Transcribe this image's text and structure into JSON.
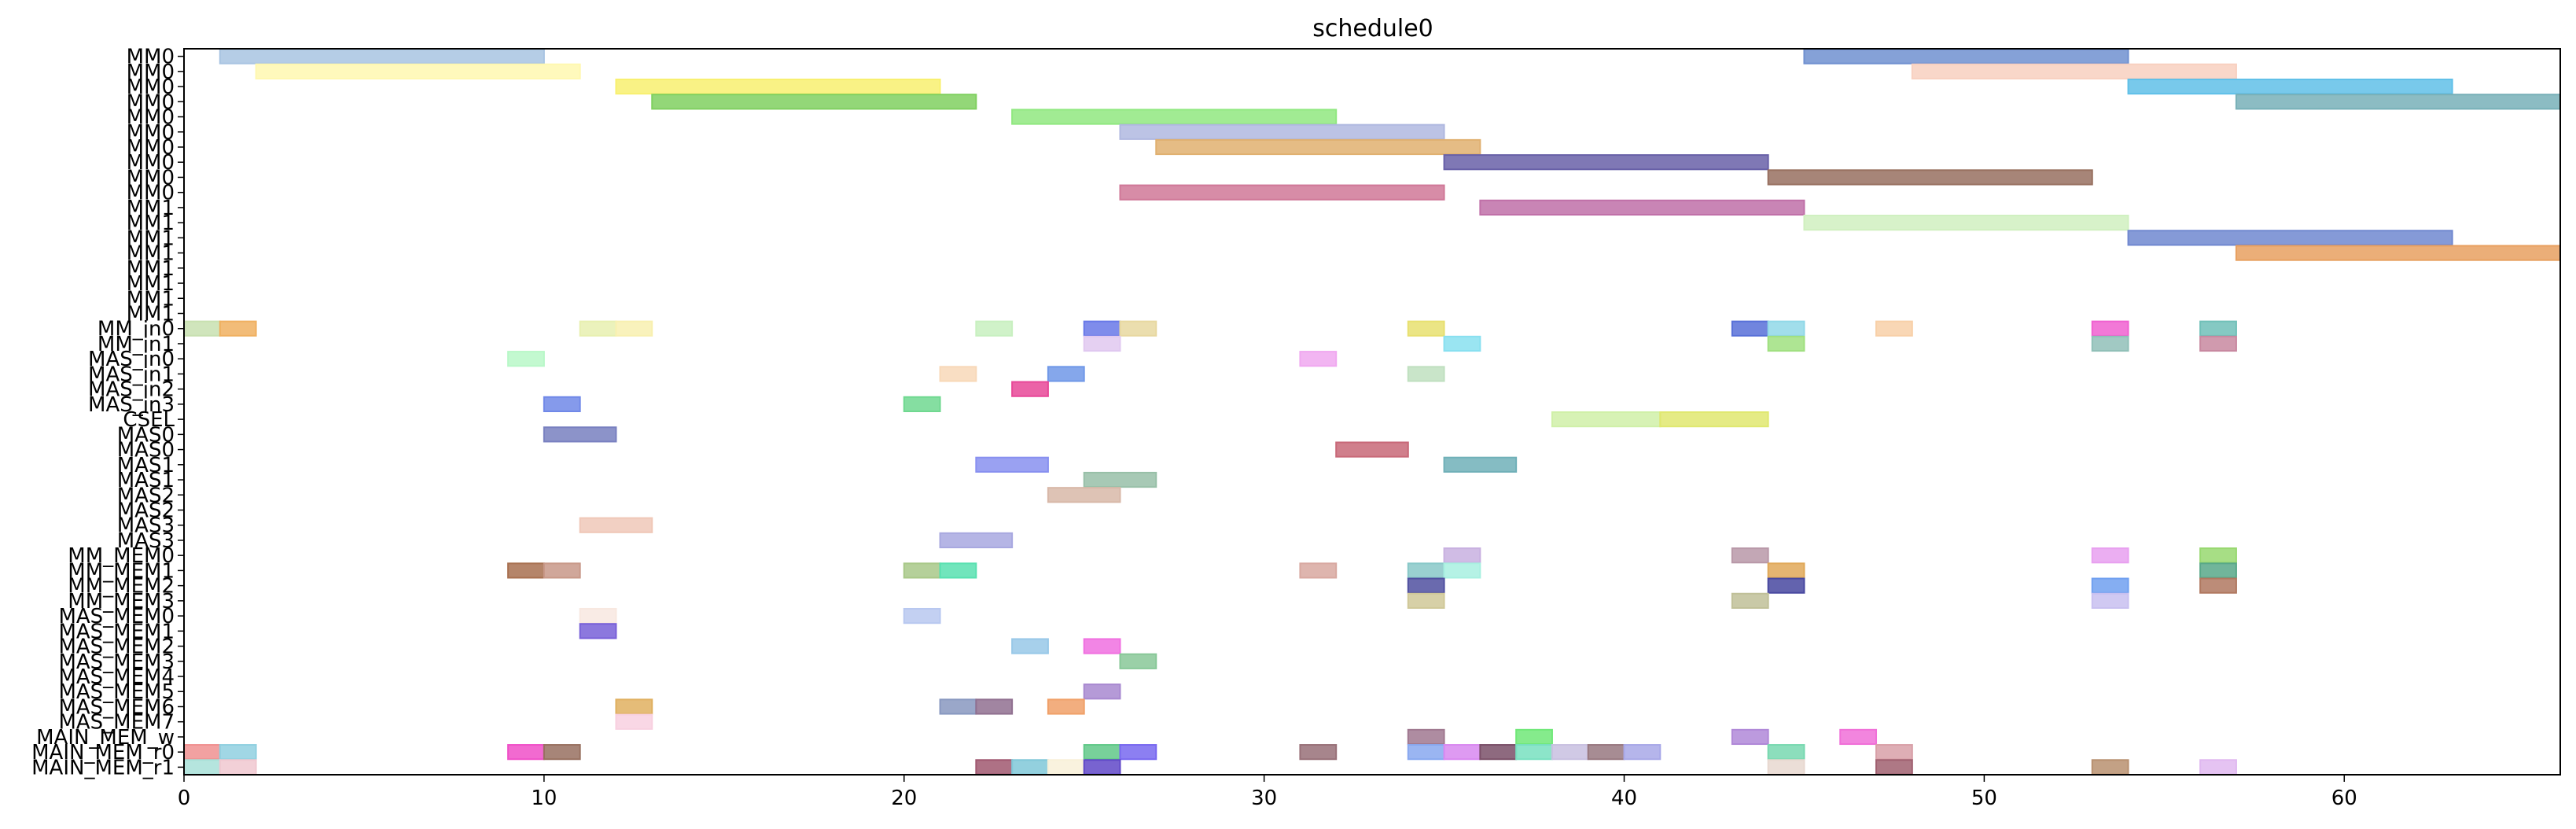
{
  "chart_data": {
    "type": "gantt",
    "title": "schedule0",
    "xlabel": "",
    "ylabel": "",
    "xlim": [
      0,
      66
    ],
    "x_ticks": [
      0,
      10,
      20,
      30,
      40,
      50,
      60
    ],
    "grid": false,
    "legend": "none",
    "rows": [
      "MM0",
      "MM0",
      "MM0",
      "MM0",
      "MM0",
      "MM0",
      "MM0",
      "MM0",
      "MM0",
      "MM0",
      "MM1",
      "MM1",
      "MM1",
      "MM1",
      "MM1",
      "MM1",
      "MM1",
      "MM1",
      "MM_in0",
      "MM_in1",
      "MAS_in0",
      "MAS_in1",
      "MAS_in2",
      "MAS_in3",
      "CSEL",
      "MAS0",
      "MAS0",
      "MAS1",
      "MAS1",
      "MAS2",
      "MAS2",
      "MAS3",
      "MAS3",
      "MM_MEM0",
      "MM_MEM1",
      "MM_MEM2",
      "MM_MEM3",
      "MAS_MEM0",
      "MAS_MEM1",
      "MAS_MEM2",
      "MAS_MEM3",
      "MAS_MEM4",
      "MAS_MEM5",
      "MAS_MEM6",
      "MAS_MEM7",
      "MAIN_MEM_w",
      "MAIN_MEM_r0",
      "MAIN_MEM_r1"
    ],
    "tasks": [
      {
        "row": 0,
        "start": 1,
        "end": 10,
        "color": "#a8c4e2"
      },
      {
        "row": 0,
        "start": 45,
        "end": 54,
        "color": "#7090d0"
      },
      {
        "row": 1,
        "start": 2,
        "end": 11,
        "color": "#fff8b0"
      },
      {
        "row": 1,
        "start": 48,
        "end": 57,
        "color": "#f8d0c0"
      },
      {
        "row": 2,
        "start": 12,
        "end": 21,
        "color": "#f8f070"
      },
      {
        "row": 2,
        "start": 54,
        "end": 63,
        "color": "#60c0e8"
      },
      {
        "row": 3,
        "start": 13,
        "end": 22,
        "color": "#80d060"
      },
      {
        "row": 3,
        "start": 57,
        "end": 66,
        "color": "#78b0b8"
      },
      {
        "row": 4,
        "start": 23,
        "end": 32,
        "color": "#90e880"
      },
      {
        "row": 5,
        "start": 26,
        "end": 35,
        "color": "#b0b8e0"
      },
      {
        "row": 6,
        "start": 27,
        "end": 36,
        "color": "#e0b070"
      },
      {
        "row": 7,
        "start": 35,
        "end": 44,
        "color": "#6860a8"
      },
      {
        "row": 8,
        "start": 44,
        "end": 53,
        "color": "#987060"
      },
      {
        "row": 9,
        "start": 26,
        "end": 35,
        "color": "#d07898"
      },
      {
        "row": 10,
        "start": 36,
        "end": 45,
        "color": "#c070a8"
      },
      {
        "row": 11,
        "start": 45,
        "end": 54,
        "color": "#d0f0c0"
      },
      {
        "row": 12,
        "start": 54,
        "end": 63,
        "color": "#7088d0"
      },
      {
        "row": 13,
        "start": 57,
        "end": 66,
        "color": "#e8a060"
      },
      {
        "row": 18,
        "start": 0,
        "end": 1,
        "color": "#c8e0b0"
      },
      {
        "row": 18,
        "start": 1,
        "end": 2,
        "color": "#f0b060"
      },
      {
        "row": 18,
        "start": 11,
        "end": 12,
        "color": "#e8f0b0"
      },
      {
        "row": 18,
        "start": 12,
        "end": 13,
        "color": "#f8f0b0"
      },
      {
        "row": 18,
        "start": 22,
        "end": 23,
        "color": "#c8f0c0"
      },
      {
        "row": 18,
        "start": 25,
        "end": 26,
        "color": "#6878e8"
      },
      {
        "row": 18,
        "start": 26,
        "end": 27,
        "color": "#e8d8a0"
      },
      {
        "row": 18,
        "start": 34,
        "end": 35,
        "color": "#e8e070"
      },
      {
        "row": 18,
        "start": 43,
        "end": 44,
        "color": "#5870d8"
      },
      {
        "row": 18,
        "start": 44,
        "end": 45,
        "color": "#90d8e8"
      },
      {
        "row": 18,
        "start": 47,
        "end": 48,
        "color": "#f8d0a8"
      },
      {
        "row": 18,
        "start": 53,
        "end": 54,
        "color": "#f060d0"
      },
      {
        "row": 18,
        "start": 56,
        "end": 57,
        "color": "#70c0b8"
      },
      {
        "row": 19,
        "start": 25,
        "end": 26,
        "color": "#e0c8f0"
      },
      {
        "row": 19,
        "start": 35,
        "end": 36,
        "color": "#88e0f0"
      },
      {
        "row": 19,
        "start": 44,
        "end": 45,
        "color": "#a0e080"
      },
      {
        "row": 19,
        "start": 53,
        "end": 54,
        "color": "#90c0b8"
      },
      {
        "row": 19,
        "start": 56,
        "end": 57,
        "color": "#c888a0"
      },
      {
        "row": 20,
        "start": 9,
        "end": 10,
        "color": "#b8f8c8"
      },
      {
        "row": 20,
        "start": 31,
        "end": 32,
        "color": "#f0a8f0"
      },
      {
        "row": 21,
        "start": 21,
        "end": 22,
        "color": "#f8d8b8"
      },
      {
        "row": 21,
        "start": 24,
        "end": 25,
        "color": "#7098e8"
      },
      {
        "row": 21,
        "start": 34,
        "end": 35,
        "color": "#c0e0c0"
      },
      {
        "row": 22,
        "start": 23,
        "end": 24,
        "color": "#e84898"
      },
      {
        "row": 23,
        "start": 10,
        "end": 11,
        "color": "#7088e8"
      },
      {
        "row": 23,
        "start": 20,
        "end": 21,
        "color": "#70d890"
      },
      {
        "row": 24,
        "start": 38,
        "end": 41,
        "color": "#d0f0a8"
      },
      {
        "row": 24,
        "start": 41,
        "end": 44,
        "color": "#e0e870"
      },
      {
        "row": 25,
        "start": 10,
        "end": 12,
        "color": "#7880c0"
      },
      {
        "row": 26,
        "start": 32,
        "end": 34,
        "color": "#c86878"
      },
      {
        "row": 27,
        "start": 22,
        "end": 24,
        "color": "#8890f0"
      },
      {
        "row": 27,
        "start": 35,
        "end": 37,
        "color": "#70b0b8"
      },
      {
        "row": 28,
        "start": 25,
        "end": 27,
        "color": "#98c0a8"
      },
      {
        "row": 29,
        "start": 24,
        "end": 26,
        "color": "#d8b8a8"
      },
      {
        "row": 31,
        "start": 11,
        "end": 13,
        "color": "#f0c8b8"
      },
      {
        "row": 32,
        "start": 21,
        "end": 23,
        "color": "#a8a8e0"
      },
      {
        "row": 33,
        "start": 35,
        "end": 36,
        "color": "#c8b0e0"
      },
      {
        "row": 33,
        "start": 43,
        "end": 44,
        "color": "#b898a8"
      },
      {
        "row": 33,
        "start": 53,
        "end": 54,
        "color": "#e8a0f0"
      },
      {
        "row": 33,
        "start": 56,
        "end": 57,
        "color": "#98d870"
      },
      {
        "row": 34,
        "start": 9,
        "end": 10,
        "color": "#a87050"
      },
      {
        "row": 34,
        "start": 10,
        "end": 11,
        "color": "#c89888"
      },
      {
        "row": 34,
        "start": 20,
        "end": 21,
        "color": "#a8c888"
      },
      {
        "row": 34,
        "start": 21,
        "end": 22,
        "color": "#58e0b0"
      },
      {
        "row": 34,
        "start": 31,
        "end": 32,
        "color": "#d8a8a0"
      },
      {
        "row": 34,
        "start": 34,
        "end": 35,
        "color": "#88c8c8"
      },
      {
        "row": 34,
        "start": 35,
        "end": 36,
        "color": "#a8f0e0"
      },
      {
        "row": 34,
        "start": 44,
        "end": 45,
        "color": "#e0a858"
      },
      {
        "row": 34,
        "start": 56,
        "end": 57,
        "color": "#58a888"
      },
      {
        "row": 35,
        "start": 34,
        "end": 35,
        "color": "#5050a0"
      },
      {
        "row": 35,
        "start": 44,
        "end": 45,
        "color": "#4848a0"
      },
      {
        "row": 35,
        "start": 53,
        "end": 54,
        "color": "#70a0f0"
      },
      {
        "row": 35,
        "start": 56,
        "end": 57,
        "color": "#b07860"
      },
      {
        "row": 36,
        "start": 34,
        "end": 35,
        "color": "#d0c898"
      },
      {
        "row": 36,
        "start": 43,
        "end": 44,
        "color": "#c0c098"
      },
      {
        "row": 36,
        "start": 53,
        "end": 54,
        "color": "#c8c0f0"
      },
      {
        "row": 37,
        "start": 11,
        "end": 12,
        "color": "#f8e8e0"
      },
      {
        "row": 37,
        "start": 20,
        "end": 21,
        "color": "#b8c8f0"
      },
      {
        "row": 38,
        "start": 11,
        "end": 12,
        "color": "#7860d8"
      },
      {
        "row": 39,
        "start": 23,
        "end": 24,
        "color": "#98c8e8"
      },
      {
        "row": 39,
        "start": 25,
        "end": 26,
        "color": "#f070e0"
      },
      {
        "row": 40,
        "start": 26,
        "end": 27,
        "color": "#88c898"
      },
      {
        "row": 42,
        "start": 25,
        "end": 26,
        "color": "#a888d0"
      },
      {
        "row": 43,
        "start": 12,
        "end": 13,
        "color": "#e0b060"
      },
      {
        "row": 43,
        "start": 21,
        "end": 22,
        "color": "#8898c0"
      },
      {
        "row": 43,
        "start": 22,
        "end": 23,
        "color": "#907090"
      },
      {
        "row": 43,
        "start": 24,
        "end": 25,
        "color": "#f0a068"
      },
      {
        "row": 44,
        "start": 12,
        "end": 13,
        "color": "#f8d0e0"
      },
      {
        "row": 45,
        "start": 34,
        "end": 35,
        "color": "#a07890"
      },
      {
        "row": 45,
        "start": 37,
        "end": 38,
        "color": "#70e878"
      },
      {
        "row": 45,
        "start": 43,
        "end": 44,
        "color": "#b088d8"
      },
      {
        "row": 45,
        "start": 46,
        "end": 47,
        "color": "#f070d8"
      },
      {
        "row": 46,
        "start": 0,
        "end": 1,
        "color": "#f09090"
      },
      {
        "row": 46,
        "start": 1,
        "end": 2,
        "color": "#90d0e0"
      },
      {
        "row": 46,
        "start": 9,
        "end": 10,
        "color": "#f050c8"
      },
      {
        "row": 46,
        "start": 10,
        "end": 11,
        "color": "#987060"
      },
      {
        "row": 46,
        "start": 25,
        "end": 26,
        "color": "#60c888"
      },
      {
        "row": 46,
        "start": 26,
        "end": 27,
        "color": "#7868f0"
      },
      {
        "row": 46,
        "start": 31,
        "end": 32,
        "color": "#987078"
      },
      {
        "row": 46,
        "start": 34,
        "end": 35,
        "color": "#88a8f0"
      },
      {
        "row": 46,
        "start": 35,
        "end": 36,
        "color": "#d888f0"
      },
      {
        "row": 46,
        "start": 36,
        "end": 37,
        "color": "#7a5068"
      },
      {
        "row": 46,
        "start": 37,
        "end": 38,
        "color": "#78e0c0"
      },
      {
        "row": 46,
        "start": 38,
        "end": 39,
        "color": "#c8c0e0"
      },
      {
        "row": 46,
        "start": 39,
        "end": 40,
        "color": "#987880"
      },
      {
        "row": 46,
        "start": 40,
        "end": 41,
        "color": "#a8a8e8"
      },
      {
        "row": 46,
        "start": 44,
        "end": 45,
        "color": "#78d8b0"
      },
      {
        "row": 46,
        "start": 47,
        "end": 48,
        "color": "#d8a0a8"
      },
      {
        "row": 47,
        "start": 0,
        "end": 1,
        "color": "#a8e0d8"
      },
      {
        "row": 47,
        "start": 1,
        "end": 2,
        "color": "#f0c8d0"
      },
      {
        "row": 47,
        "start": 22,
        "end": 23,
        "color": "#a05870"
      },
      {
        "row": 47,
        "start": 23,
        "end": 24,
        "color": "#80c8d8"
      },
      {
        "row": 47,
        "start": 24,
        "end": 25,
        "color": "#f8f0d8"
      },
      {
        "row": 47,
        "start": 25,
        "end": 26,
        "color": "#6048c8"
      },
      {
        "row": 47,
        "start": 44,
        "end": 45,
        "color": "#e8d8d0"
      },
      {
        "row": 47,
        "start": 47,
        "end": 48,
        "color": "#a06070"
      },
      {
        "row": 47,
        "start": 53,
        "end": 54,
        "color": "#b89070"
      },
      {
        "row": 47,
        "start": 56,
        "end": 57,
        "color": "#e0b8f0"
      }
    ]
  }
}
